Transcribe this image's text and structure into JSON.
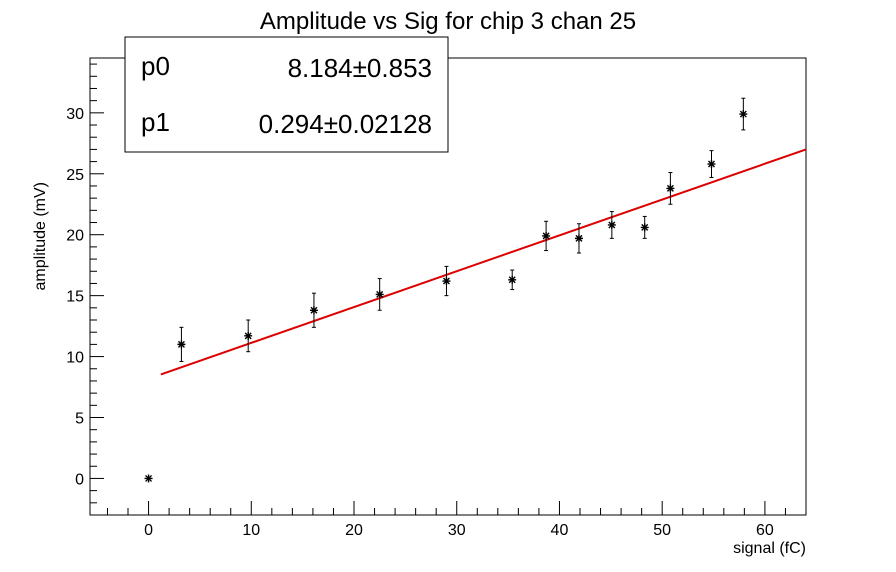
{
  "chart_data": {
    "type": "scatter",
    "title": "Amplitude vs Sig for chip 3 chan 25",
    "xlabel": "signal (fC)",
    "ylabel": "amplitude (mV)",
    "xlim": [
      -5.7,
      64
    ],
    "ylim": [
      -3,
      34.5
    ],
    "x_ticks": [
      0,
      10,
      20,
      30,
      40,
      50,
      60
    ],
    "y_ticks": [
      0,
      5,
      10,
      15,
      20,
      25,
      30
    ],
    "grid": false,
    "legend": "none",
    "series": [
      {
        "marker": "asterisk",
        "color": "#000000",
        "points": [
          {
            "x": 0.0,
            "y": 0.0,
            "err": 0.0
          },
          {
            "x": 3.2,
            "y": 11.0,
            "err": 1.4
          },
          {
            "x": 9.7,
            "y": 11.7,
            "err": 1.3
          },
          {
            "x": 16.1,
            "y": 13.8,
            "err": 1.4
          },
          {
            "x": 22.5,
            "y": 15.1,
            "err": 1.3
          },
          {
            "x": 29.0,
            "y": 16.2,
            "err": 1.2
          },
          {
            "x": 35.4,
            "y": 16.3,
            "err": 0.8
          },
          {
            "x": 38.7,
            "y": 19.9,
            "err": 1.2
          },
          {
            "x": 41.9,
            "y": 19.7,
            "err": 1.2
          },
          {
            "x": 45.1,
            "y": 20.8,
            "err": 1.1
          },
          {
            "x": 48.3,
            "y": 20.6,
            "err": 0.9
          },
          {
            "x": 50.8,
            "y": 23.8,
            "err": 1.3
          },
          {
            "x": 54.8,
            "y": 25.8,
            "err": 1.1
          },
          {
            "x": 57.9,
            "y": 29.9,
            "err": 1.3
          }
        ]
      }
    ],
    "fit": {
      "type": "linear",
      "color": "#dd0000",
      "x_range": [
        1.2,
        64
      ],
      "p0": 8.184,
      "p1": 0.294
    },
    "stats_box": {
      "rows": [
        {
          "name": "p0",
          "value": "8.184",
          "pm": "±",
          "error": "0.853"
        },
        {
          "name": "p1",
          "value": "0.294",
          "pm": "±",
          "error": "0.02128"
        }
      ]
    }
  }
}
